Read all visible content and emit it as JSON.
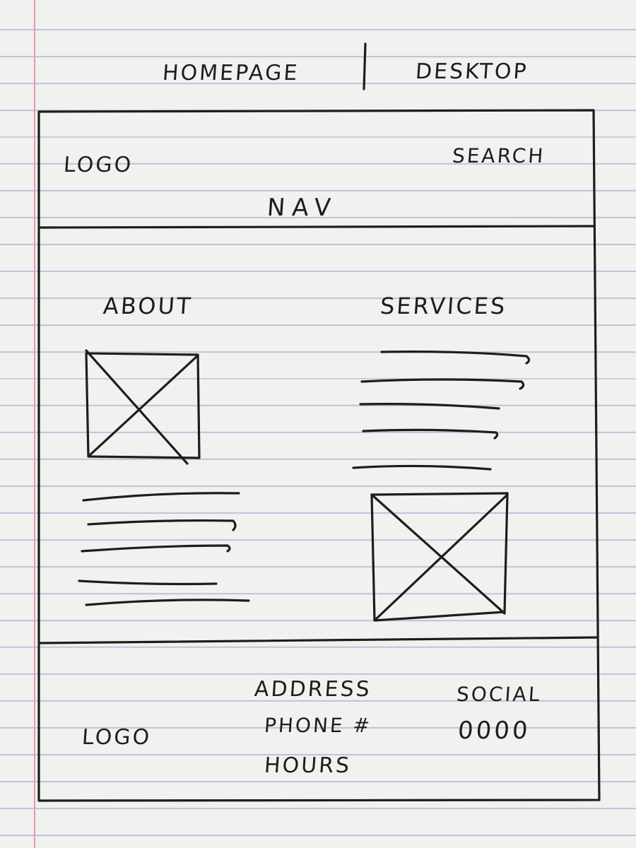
{
  "title": {
    "page": "HOMEPAGE",
    "device": "DESKTOP"
  },
  "header": {
    "logo": "LOGO",
    "search": "SEARCH",
    "nav": "NAV"
  },
  "main": {
    "about": {
      "heading": "ABOUT",
      "text_lines": 5
    },
    "services": {
      "heading": "SERVICES",
      "text_lines": 5
    }
  },
  "footer": {
    "logo": "LOGO",
    "contact": [
      "ADDRESS",
      "PHONE #",
      "HOURS"
    ],
    "social": {
      "label": "SOCIAL",
      "icons": "0000"
    }
  },
  "colors": {
    "paper": "#f1f1ef",
    "rule_line": "#b9c6dc",
    "margin_line": "#e79aa8",
    "ink": "#1d1d1d"
  }
}
